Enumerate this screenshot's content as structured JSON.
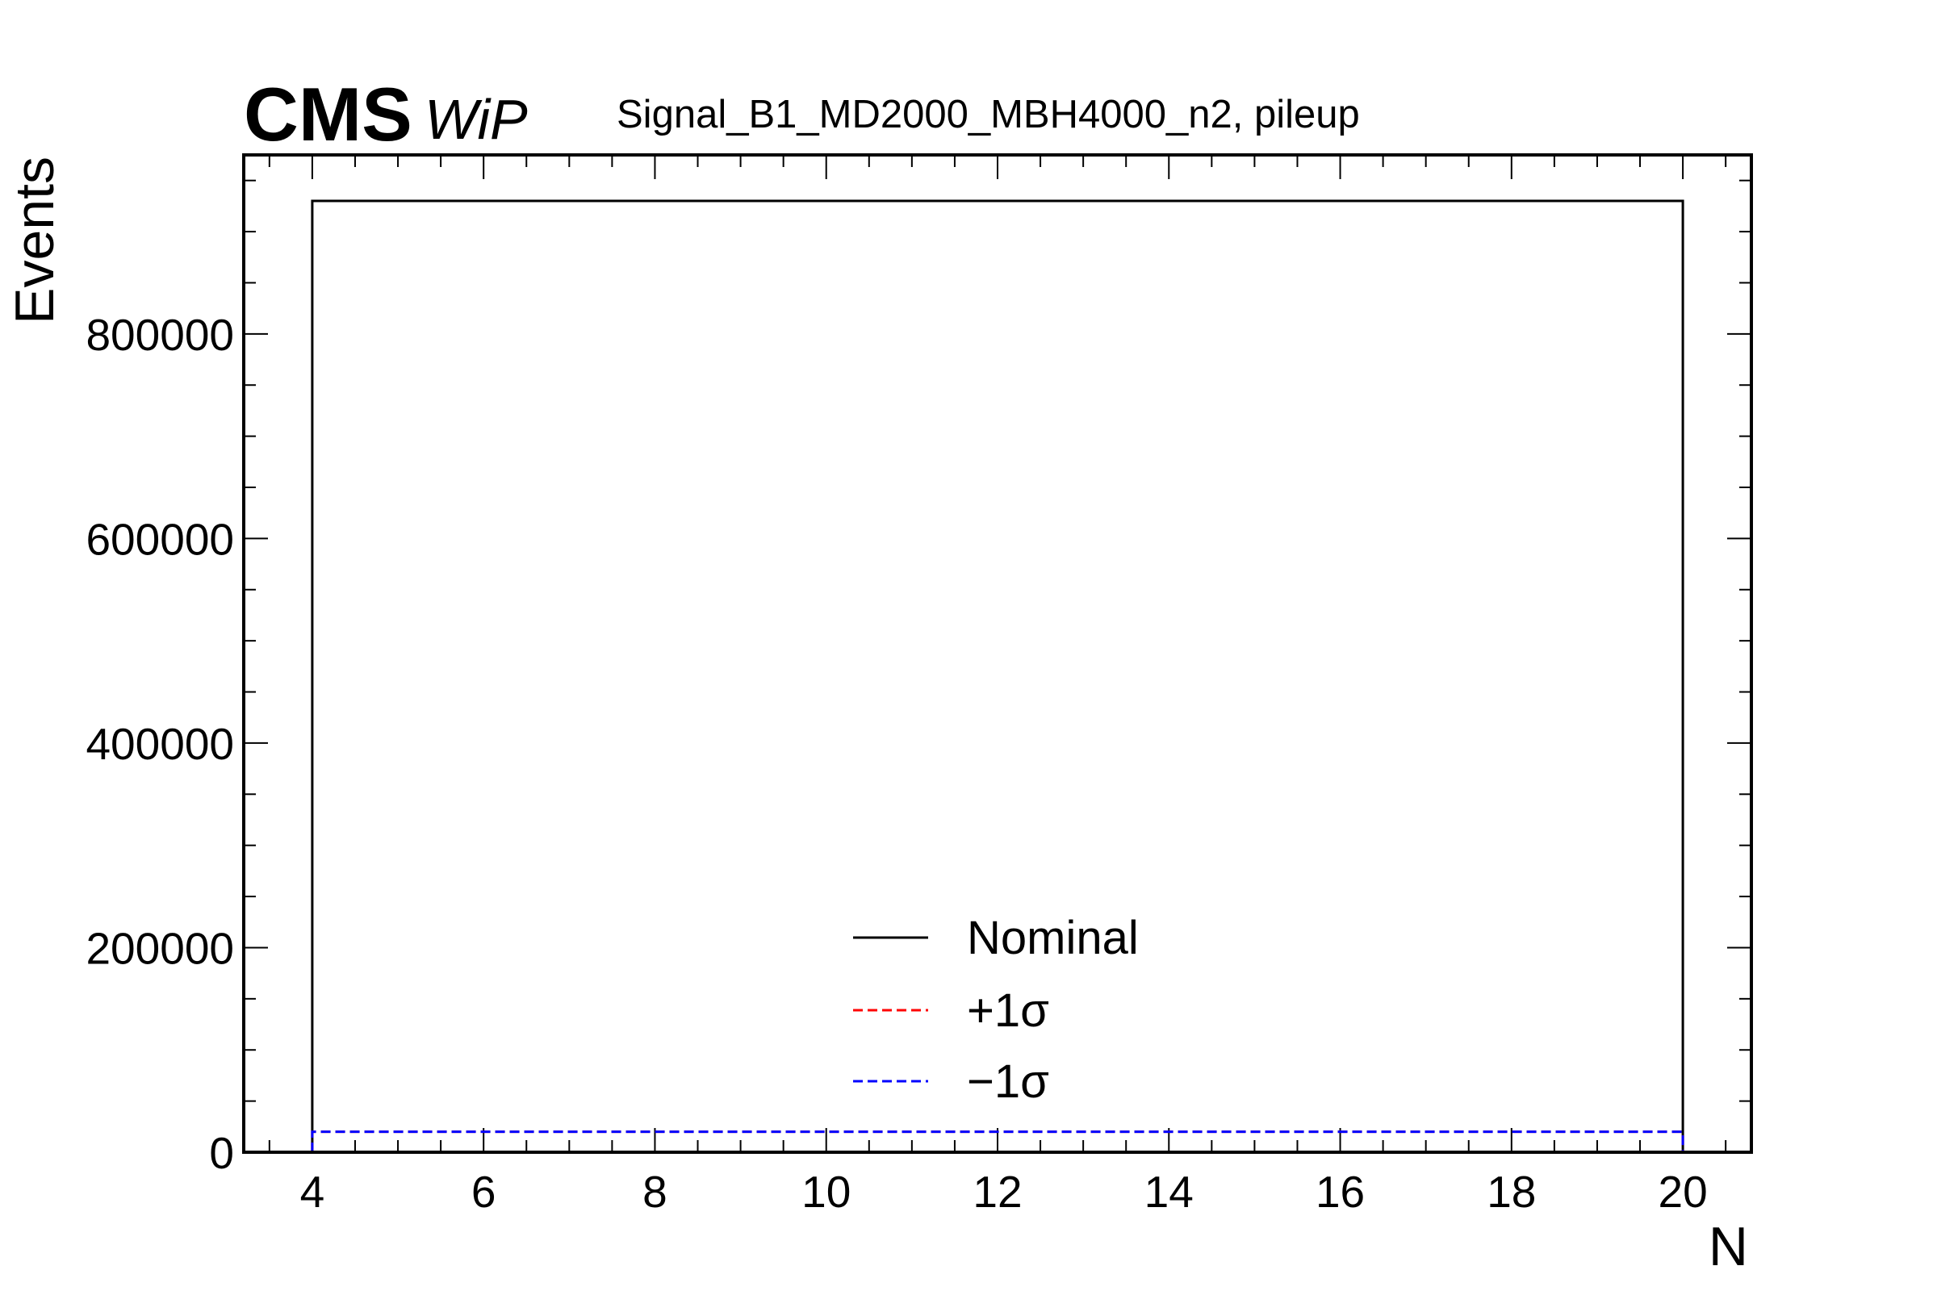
{
  "header": {
    "experiment": "CMS",
    "status": "WiP",
    "title": "Signal_B1_MD2000_MBH4000_n2, pileup"
  },
  "chart_data": {
    "type": "line",
    "style": "step-histogram",
    "xlabel": "N",
    "ylabel": "Events",
    "xlim": [
      3.2,
      20.8
    ],
    "ylim": [
      0,
      975000
    ],
    "x_ticks": [
      4,
      6,
      8,
      10,
      12,
      14,
      16,
      18,
      20
    ],
    "y_ticks": [
      0,
      200000,
      400000,
      600000,
      800000
    ],
    "x_tick_labels": [
      "4",
      "6",
      "8",
      "10",
      "12",
      "14",
      "16",
      "18",
      "20"
    ],
    "y_tick_labels": [
      "0",
      "200000",
      "400000",
      "600000",
      "800000"
    ],
    "legend_position": "bottom-center",
    "grid": false,
    "series": [
      {
        "name": "Nominal",
        "color": "#000000",
        "dash": "solid",
        "bin_edges": [
          4,
          20
        ],
        "values": [
          930000
        ]
      },
      {
        "name": "+1σ",
        "color": "#ff0000",
        "dash": "dashed",
        "bin_edges": [
          4,
          20
        ],
        "values": [
          20000
        ]
      },
      {
        "name": "−1σ",
        "color": "#0000ff",
        "dash": "dashed",
        "bin_edges": [
          4,
          20
        ],
        "values": [
          20000
        ]
      }
    ]
  }
}
